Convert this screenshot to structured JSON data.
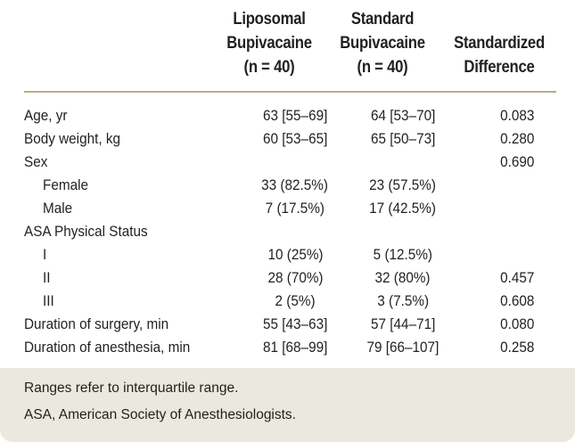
{
  "header": {
    "col1": [
      "Liposomal",
      "Bupivacaine",
      "(n = 40)"
    ],
    "col2": [
      "Standard",
      "Bupivacaine",
      "(n = 40)"
    ],
    "col3": [
      "Standardized",
      "Difference"
    ]
  },
  "rows": [
    {
      "label": "Age, yr",
      "indent": false,
      "c1": "63 [55–69]",
      "c2": "64 [53–70]",
      "c3": "0.083"
    },
    {
      "label": "Body weight, kg",
      "indent": false,
      "c1": "60 [53–65]",
      "c2": "65 [50–73]",
      "c3": "0.280"
    },
    {
      "label": "Sex",
      "indent": false,
      "c1": "",
      "c2": "",
      "c3": "0.690"
    },
    {
      "label": "Female",
      "indent": true,
      "c1": "33 (82.5%)",
      "c2": "23 (57.5%)",
      "c3": ""
    },
    {
      "label": "Male",
      "indent": true,
      "c1": "7 (17.5%)",
      "c2": "17 (42.5%)",
      "c3": ""
    },
    {
      "label": "ASA Physical Status",
      "indent": false,
      "c1": "",
      "c2": "",
      "c3": ""
    },
    {
      "label": "I",
      "indent": true,
      "c1": "10 (25%)",
      "c2": "5 (12.5%)",
      "c3": ""
    },
    {
      "label": "II",
      "indent": true,
      "c1": "28 (70%)",
      "c2": "32 (80%)",
      "c3": "0.457"
    },
    {
      "label": "III",
      "indent": true,
      "c1": "2 (5%)",
      "c2": "3 (7.5%)",
      "c3": "0.608"
    },
    {
      "label": "Duration of surgery, min",
      "indent": false,
      "c1": "55 [43–63]",
      "c2": "57 [44–71]",
      "c3": "0.080"
    },
    {
      "label": "Duration of anesthesia, min",
      "indent": false,
      "c1": "81 [68–99]",
      "c2": "79 [66–107]",
      "c3": "0.258"
    }
  ],
  "footnotes": [
    "Ranges refer to interquartile range.",
    "ASA, American Society of Anesthesiologists."
  ]
}
